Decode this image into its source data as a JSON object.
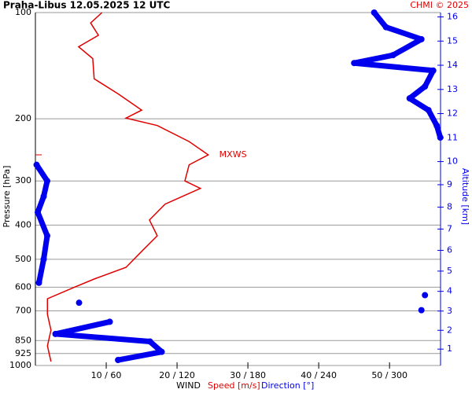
{
  "chart_data": {
    "type": "line",
    "title": "Praha-Libus   12.05.2025 12 UTC",
    "credit": "CHMI © 2025",
    "ylabel": "Pressure [hPa]",
    "y2label": "Altitude [km]",
    "xlabel": "WIND",
    "xlabel_speed": "Speed [m/s]",
    "xlabel_direction": "Direction [°]",
    "annotation": {
      "text": "MXWS",
      "pressure": 253,
      "value": 24.4
    },
    "ylog": true,
    "ylim": [
      100,
      1000
    ],
    "yticks": [
      100,
      200,
      300,
      400,
      500,
      600,
      700,
      850,
      925,
      1000
    ],
    "y2ticks": [
      1,
      2,
      3,
      4,
      5,
      6,
      7,
      8,
      9,
      10,
      11,
      12,
      13,
      14,
      15,
      16
    ],
    "xlim": [
      0,
      57.2
    ],
    "x2lim": [
      0,
      343.2
    ],
    "xticks": [
      {
        "value": 10,
        "label": "10 / 60"
      },
      {
        "value": 20,
        "label": "20 / 120"
      },
      {
        "value": 30,
        "label": "30 / 180"
      },
      {
        "value": 40,
        "label": "40 / 240"
      },
      {
        "value": 50,
        "label": "50 / 300"
      }
    ],
    "grid": true,
    "series": [
      {
        "name": "Speed [m/s]",
        "color": "#e00000",
        "axis": "x",
        "pressure": [
          100,
          107,
          116,
          125,
          135,
          154,
          170,
          189,
          199,
          209,
          232,
          253,
          270,
          300,
          315,
          349,
          387,
          429,
          475,
          527,
          569,
          599,
          647,
          716,
          794,
          880,
          974
        ],
        "values": [
          9.4,
          7.8,
          8.9,
          6.1,
          8.1,
          8.3,
          11.7,
          15,
          12.8,
          17.2,
          21.7,
          24.4,
          21.7,
          21.1,
          23.3,
          18.3,
          16.1,
          17.2,
          15,
          12.8,
          8.3,
          5.6,
          1.7,
          1.7,
          2.2,
          1.7,
          2.2
        ]
      },
      {
        "name": "Direction [°]",
        "color": "#0000ee",
        "axis": "x2",
        "pressure": [
          100,
          110,
          119,
          132,
          139,
          146,
          162,
          175,
          189,
          209,
          226,
          270,
          300,
          332,
          368,
          429,
          500,
          583,
          632,
          664,
          697,
          752,
          814,
          855,
          915,
          965
        ],
        "values": [
          287,
          297,
          327,
          303,
          270,
          337,
          330,
          317,
          333,
          340,
          343,
          1,
          10,
          7,
          2,
          10,
          7,
          3,
          330,
          37,
          327,
          63,
          17,
          97,
          107,
          70
        ]
      }
    ]
  }
}
